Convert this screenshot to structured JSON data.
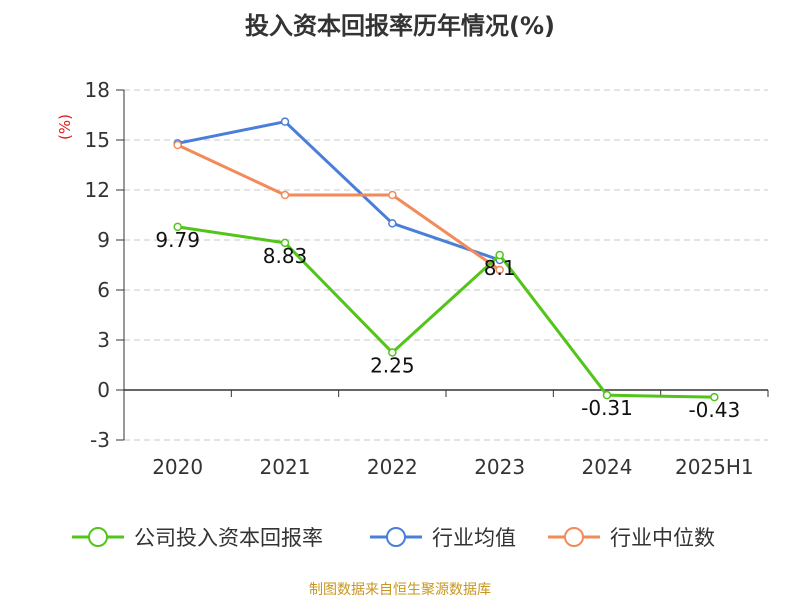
{
  "title": "投入资本回报率历年情况(%)",
  "source": "制图数据来自恒生聚源数据库",
  "chart_data": {
    "type": "line",
    "title": "投入资本回报率历年情况(%)",
    "ylabel": "(%)",
    "xlabel": "",
    "categories": [
      "2020",
      "2021",
      "2022",
      "2023",
      "2024",
      "2025H1"
    ],
    "ylim": [
      -3,
      18
    ],
    "yticks": [
      -3,
      0,
      3,
      6,
      9,
      12,
      15,
      18
    ],
    "grid": true,
    "legend_position": "bottom",
    "series": [
      {
        "name": "公司投入资本回报率",
        "color": "#52c41a",
        "values": [
          9.79,
          8.83,
          2.25,
          8.1,
          -0.31,
          -0.43
        ],
        "labels": [
          "9.79",
          "8.83",
          "2.25",
          "8.1",
          "-0.31",
          "-0.43"
        ]
      },
      {
        "name": "行业均值",
        "color": "#4a7fd9",
        "values": [
          14.8,
          16.1,
          10.0,
          7.8,
          null,
          null
        ]
      },
      {
        "name": "行业中位数",
        "color": "#f28a5a",
        "values": [
          14.7,
          11.7,
          11.7,
          7.2,
          null,
          null
        ]
      }
    ]
  }
}
